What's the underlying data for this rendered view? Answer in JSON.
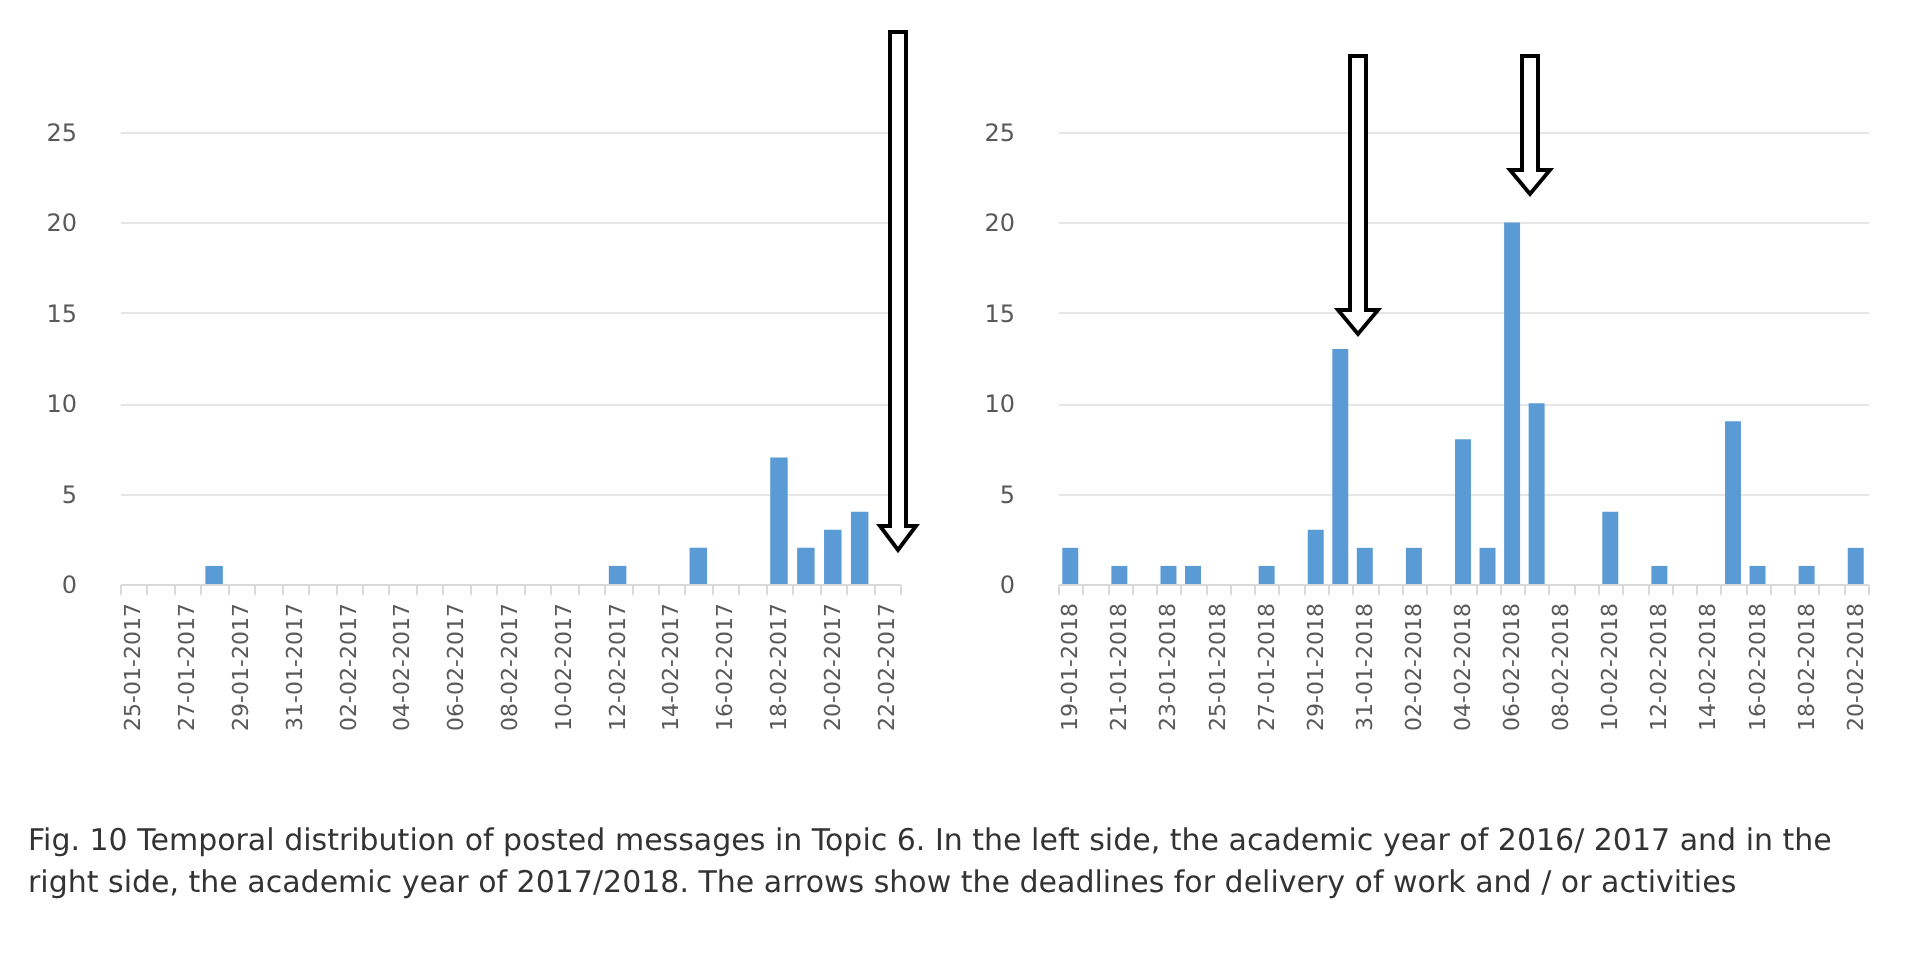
{
  "chart_data": [
    {
      "type": "bar",
      "categories": [
        "25-01-2017",
        null,
        "27-01-2017",
        null,
        "29-01-2017",
        null,
        "31-01-2017",
        null,
        "02-02-2017",
        null,
        "04-02-2017",
        null,
        "06-02-2017",
        null,
        "08-02-2017",
        null,
        "10-02-2017",
        null,
        "12-02-2017",
        null,
        "14-02-2017",
        null,
        "16-02-2017",
        null,
        "18-02-2017",
        null,
        "20-02-2017",
        null,
        "22-02-2017"
      ],
      "values": [
        0,
        0,
        0,
        1,
        0,
        0,
        0,
        0,
        0,
        0,
        0,
        0,
        0,
        0,
        0,
        0,
        0,
        0,
        1,
        0,
        0,
        2,
        0,
        0,
        7,
        2,
        3,
        4,
        0
      ],
      "color": "#5b9bd5",
      "ylim": [
        0,
        25
      ],
      "yticks": [
        0,
        5,
        10,
        15,
        20,
        25
      ],
      "grid": "y",
      "annotations": [
        "Fig. 10 Temporal distribution of posted messages in Topic 6. In the left side, the academic year of 2016/ 2017 and in the right side, the academic year of 2017/2018. The arrows show the deadlines for delivery of work and / or activities"
      ]
    },
    {
      "type": "bar",
      "categories": [
        "19-01-2018",
        null,
        "21-01-2018",
        null,
        "23-01-2018",
        null,
        "25-01-2018",
        null,
        "27-01-2018",
        null,
        "29-01-2018",
        null,
        "31-01-2018",
        null,
        "02-02-2018",
        null,
        "04-02-2018",
        null,
        "06-02-2018",
        null,
        "08-02-2018",
        null,
        "10-02-2018",
        null,
        "12-02-2018",
        null,
        "14-02-2018",
        null,
        "16-02-2018",
        null,
        "18-02-2018",
        null,
        "20-02-2018"
      ],
      "values": [
        2,
        0,
        1,
        0,
        1,
        1,
        0,
        0,
        1,
        0,
        3,
        13,
        2,
        0,
        2,
        0,
        8,
        2,
        20,
        10,
        0,
        0,
        4,
        0,
        1,
        0,
        0,
        9,
        1,
        0,
        1,
        0,
        2
      ],
      "color": "#5b9bd5",
      "ylim": [
        0,
        25
      ],
      "yticks": [
        0,
        5,
        10,
        15,
        20,
        25
      ],
      "grid": "y"
    }
  ]
}
